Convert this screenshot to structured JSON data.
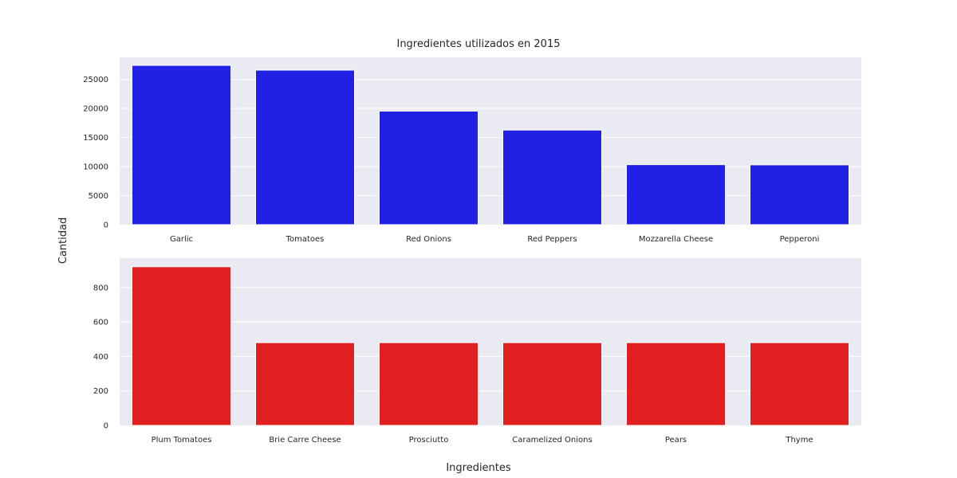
{
  "chart_data": {
    "title": "Ingredientes utilizados en 2015",
    "xlabel": "Ingredientes",
    "ylabel": "Cantidad",
    "colors": {
      "background": "#eaeaf2",
      "grid": "#ffffff",
      "top": "#2121e6",
      "bottom": "#e01f20"
    },
    "charts": [
      {
        "type": "bar",
        "categories": [
          "Garlic",
          "Tomatoes",
          "Red Onions",
          "Red Peppers",
          "Mozzarella Cheese",
          "Pepperoni"
        ],
        "values": [
          27422,
          26601,
          19547,
          16284,
          10333,
          10300
        ],
        "ylim": [
          0,
          28800
        ],
        "yticks": [
          0,
          5000,
          10000,
          15000,
          20000,
          25000
        ],
        "ytick_labels": [
          "0",
          "5000",
          "10000",
          "15000",
          "20000",
          "25000"
        ]
      },
      {
        "type": "bar",
        "categories": [
          "Plum Tomatoes",
          "Brie Carre Cheese",
          "Prosciutto",
          "Caramelized Onions",
          "Pears",
          "Thyme"
        ],
        "values": [
          920,
          480,
          480,
          480,
          480,
          480
        ],
        "ylim": [
          0,
          970
        ],
        "yticks": [
          0,
          200,
          400,
          600,
          800
        ],
        "ytick_labels": [
          "0",
          "200",
          "400",
          "600",
          "800"
        ]
      }
    ]
  }
}
